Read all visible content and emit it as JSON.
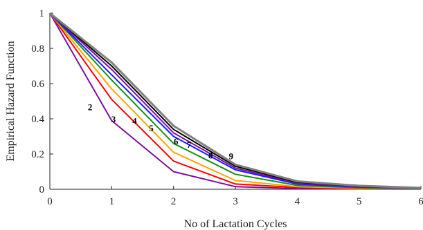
{
  "chart_data": {
    "type": "line",
    "title": "",
    "xlabel": "No of Lactation Cycles",
    "ylabel": "Empirical Hazard Function",
    "xlim": [
      0,
      6
    ],
    "ylim": [
      0,
      1
    ],
    "xticks": [
      "0",
      "1",
      "2",
      "3",
      "4",
      "5",
      "6"
    ],
    "yticks": [
      "0",
      "0.2",
      "0.4",
      "0.6",
      "0.8",
      "1"
    ],
    "grid": false,
    "x": [
      0,
      1,
      2,
      3,
      4,
      5,
      6
    ],
    "series": [
      {
        "name": "2",
        "color": "#7b0f9a",
        "values": [
          1.0,
          0.39,
          0.1,
          0.015,
          0.004,
          0.002,
          0.001
        ]
      },
      {
        "name": "3",
        "color": "#ff0000",
        "values": [
          1.0,
          0.51,
          0.16,
          0.03,
          0.01,
          0.004,
          0.002
        ]
      },
      {
        "name": "4",
        "color": "#ffa500",
        "values": [
          1.0,
          0.57,
          0.21,
          0.05,
          0.015,
          0.006,
          0.003
        ]
      },
      {
        "name": "5",
        "color": "#1a8c1a",
        "values": [
          1.0,
          0.62,
          0.26,
          0.085,
          0.022,
          0.009,
          0.004
        ]
      },
      {
        "name": "6",
        "color": "#1a1aff",
        "values": [
          1.0,
          0.65,
          0.3,
          0.11,
          0.03,
          0.012,
          0.005
        ]
      },
      {
        "name": "7",
        "color": "#7b0f9a",
        "values": [
          1.0,
          0.68,
          0.32,
          0.12,
          0.035,
          0.015,
          0.006
        ]
      },
      {
        "name": "8",
        "color": "#000000",
        "values": [
          1.0,
          0.7,
          0.34,
          0.13,
          0.04,
          0.018,
          0.007
        ]
      },
      {
        "name": "9",
        "color": "#808080",
        "values": [
          1.0,
          0.72,
          0.36,
          0.14,
          0.045,
          0.02,
          0.008
        ]
      }
    ],
    "annotations": [
      "2",
      "3",
      "4",
      "5",
      "6",
      "7",
      "8",
      "9"
    ]
  }
}
